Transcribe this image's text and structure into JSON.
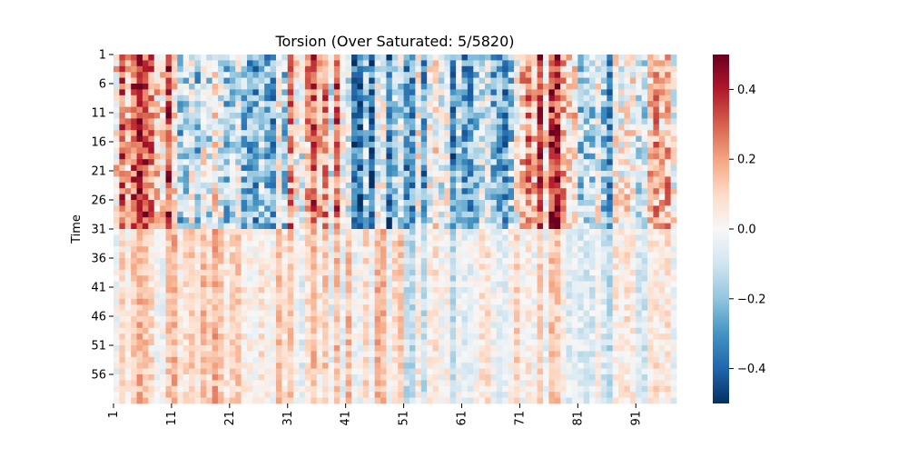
{
  "chart_data": {
    "type": "heatmap",
    "title": "Torsion (Over Saturated: 5/5820)",
    "xlabel": "",
    "ylabel": "Time",
    "x_tick_labels": [
      "1",
      "11",
      "21",
      "31",
      "41",
      "51",
      "61",
      "71",
      "81",
      "91"
    ],
    "y_tick_labels": [
      "1",
      "6",
      "11",
      "16",
      "21",
      "26",
      "31",
      "36",
      "41",
      "46",
      "51",
      "56"
    ],
    "n_rows": 60,
    "n_cols": 97,
    "colormap": "RdBu_r",
    "colorbar": {
      "vmin": -0.5,
      "vmax": 0.5,
      "tick_values": [
        0.4,
        0.2,
        0.0,
        -0.2,
        -0.4
      ],
      "tick_labels": [
        "0.4",
        "0.2",
        "0.0",
        "−0.2",
        "−0.4"
      ]
    },
    "grid": false,
    "legend": "colorbar right",
    "column_profile": [
      {
        "cols": "1-10",
        "top_rows_1_30": 0.32,
        "bottom_rows_31_60": 0.1
      },
      {
        "cols": "11-20",
        "top_rows_1_30": -0.15,
        "bottom_rows_31_60": 0.12
      },
      {
        "cols": "21-30",
        "top_rows_1_30": -0.12,
        "bottom_rows_31_60": 0.15
      },
      {
        "cols": "31-40",
        "top_rows_1_30": 0.18,
        "bottom_rows_31_60": 0.08
      },
      {
        "cols": "41-50",
        "top_rows_1_30": -0.3,
        "bottom_rows_31_60": 0.1
      },
      {
        "cols": "51-60",
        "top_rows_1_30": -0.2,
        "bottom_rows_31_60": -0.05
      },
      {
        "cols": "61-70",
        "top_rows_1_30": -0.18,
        "bottom_rows_31_60": 0.05
      },
      {
        "cols": "71-80",
        "top_rows_1_30": 0.3,
        "bottom_rows_31_60": 0.05
      },
      {
        "cols": "81-90",
        "top_rows_1_30": -0.15,
        "bottom_rows_31_60": -0.05
      },
      {
        "cols": "91-97",
        "top_rows_1_30": 0.1,
        "bottom_rows_31_60": 0.02
      }
    ]
  }
}
